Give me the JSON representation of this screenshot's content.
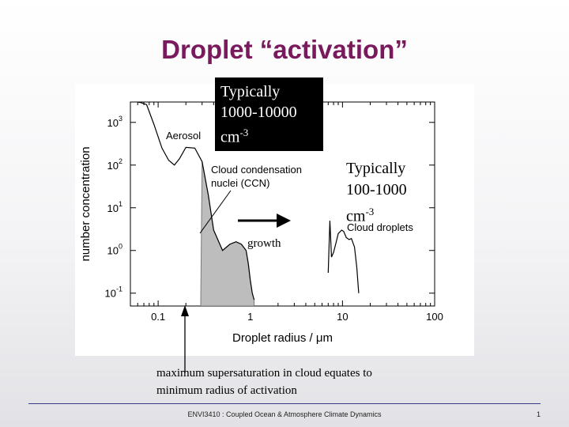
{
  "slide": {
    "title": "Droplet “activation”",
    "ccn_note": {
      "line1": "Typically",
      "line2": "1000-10000",
      "unit": "cm",
      "exponent": "-3"
    },
    "droplet_note": {
      "line1": "Typically",
      "line2": "100-1000",
      "unit": "cm",
      "exponent": "-3"
    },
    "growth_label": "growth",
    "footnote": {
      "line1": "maximum supersaturation in cloud equates to",
      "line2": "minimum radius of activation"
    },
    "footer": "ENVI3410 : Coupled Ocean & Atmosphere Climate Dynamics",
    "page_number": "1"
  },
  "chart_data": {
    "type": "line",
    "xlabel": "Droplet radius / μm",
    "ylabel": "number concentration",
    "x_scale": "log",
    "y_scale": "log",
    "xlim": [
      0.05,
      100
    ],
    "ylim": [
      0.05,
      3000
    ],
    "x_ticks": [
      {
        "value": 0.1,
        "label": "0.1"
      },
      {
        "value": 1,
        "label": "1"
      },
      {
        "value": 10,
        "label": "10"
      },
      {
        "value": 100,
        "label": "100"
      }
    ],
    "y_ticks": [
      {
        "value": 0.1,
        "base": "10",
        "exp": "-1"
      },
      {
        "value": 1,
        "base": "10",
        "exp": "0"
      },
      {
        "value": 10,
        "base": "10",
        "exp": "1"
      },
      {
        "value": 100,
        "base": "10",
        "exp": "2"
      },
      {
        "value": 1000,
        "base": "10",
        "exp": "3"
      }
    ],
    "series": [
      {
        "name": "Aerosol",
        "color": "#000000",
        "x": [
          0.06,
          0.065,
          0.075,
          0.09,
          0.11,
          0.13,
          0.15,
          0.17,
          0.2,
          0.25,
          0.3,
          0.35,
          0.4,
          0.5,
          0.6,
          0.7,
          0.8,
          0.9,
          0.95,
          1.0,
          1.05,
          1.1
        ],
        "y": [
          3000,
          2900,
          2600,
          900,
          250,
          130,
          100,
          140,
          260,
          250,
          120,
          20,
          3,
          1,
          1.4,
          1.6,
          1.4,
          1.0,
          0.5,
          0.2,
          0.1,
          0.07
        ]
      },
      {
        "name": "Cloud condensation nuclei (CCN)",
        "color": "#7a7a7a",
        "fill": "#bdbdbd",
        "x": [
          0.29,
          0.3,
          0.35,
          0.4,
          0.5,
          0.6,
          0.7,
          0.8,
          0.9,
          0.95,
          1.0,
          1.05,
          1.1
        ],
        "y": [
          0.07,
          120,
          20,
          3,
          1,
          1.4,
          1.6,
          1.4,
          1.0,
          0.5,
          0.2,
          0.1,
          0.07
        ]
      },
      {
        "name": "Cloud droplets",
        "color": "#000000",
        "x": [
          7.0,
          7.3,
          7.6,
          8.0,
          8.5,
          9.0,
          9.8,
          10.3,
          11.0,
          11.8,
          12.5,
          13.5,
          14.3,
          15.0
        ],
        "y": [
          0.3,
          5,
          0.7,
          0.9,
          1.5,
          2.5,
          3.0,
          2.8,
          2.0,
          1.8,
          1.9,
          1.2,
          0.4,
          0.1
        ]
      }
    ],
    "annotations": [
      {
        "text": "Aerosol"
      },
      {
        "text": "Cloud condensation"
      },
      {
        "text": "nuclei (CCN)"
      },
      {
        "text": "Cloud droplets"
      }
    ]
  }
}
